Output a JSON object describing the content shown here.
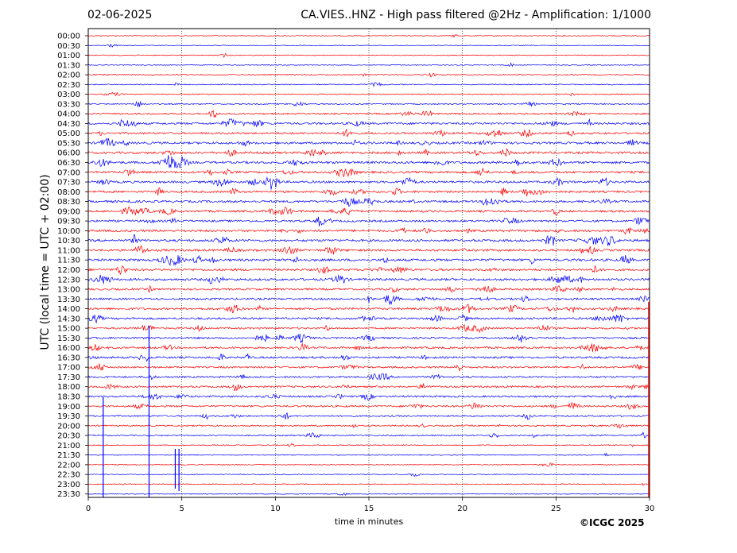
{
  "header": {
    "date": "02-06-2025",
    "title": "CA.VIES..HNZ - High pass filtered @2Hz - Amplification: 1/1000"
  },
  "footer": {
    "copyright": "©ICGC 2025"
  },
  "chart_data": {
    "type": "line",
    "xlabel": "time in minutes",
    "ylabel": "UTC (local time = UTC + 02:00)",
    "xlim": [
      0,
      30
    ],
    "x_ticks": [
      0,
      5,
      10,
      15,
      20,
      25,
      30
    ],
    "vertical_gridlines": [
      5,
      10,
      15,
      20,
      25
    ],
    "grid_style": "dotted",
    "trace_colors": [
      "#ff0000",
      "#0000ff"
    ],
    "color_pattern": "alternating every 30-minute row (red first)",
    "row_labels": [
      "00:00",
      "00:30",
      "01:00",
      "01:30",
      "02:00",
      "02:30",
      "03:00",
      "03:30",
      "04:00",
      "04:30",
      "05:00",
      "05:30",
      "06:00",
      "06:30",
      "07:00",
      "07:30",
      "08:00",
      "08:30",
      "09:00",
      "09:30",
      "10:00",
      "10:30",
      "11:00",
      "11:30",
      "12:00",
      "12:30",
      "13:00",
      "13:30",
      "14:00",
      "14:30",
      "15:00",
      "15:30",
      "16:00",
      "16:30",
      "17:00",
      "17:30",
      "18:00",
      "18:30",
      "19:00",
      "19:30",
      "20:00",
      "20:30",
      "21:00",
      "21:30",
      "22:00",
      "22:30",
      "23:00",
      "23:30"
    ],
    "row_activity": [
      0.05,
      0.05,
      0.08,
      0.08,
      0.15,
      0.12,
      0.15,
      0.2,
      0.35,
      0.55,
      0.5,
      0.6,
      0.6,
      0.65,
      0.6,
      0.6,
      0.55,
      0.6,
      0.55,
      0.55,
      0.6,
      0.65,
      0.6,
      0.65,
      0.6,
      0.6,
      0.5,
      0.5,
      0.55,
      0.5,
      0.45,
      0.45,
      0.5,
      0.5,
      0.45,
      0.4,
      0.45,
      0.45,
      0.45,
      0.35,
      0.3,
      0.25,
      0.15,
      0.1,
      0.05,
      0.1,
      0.1,
      0.05
    ]
  }
}
